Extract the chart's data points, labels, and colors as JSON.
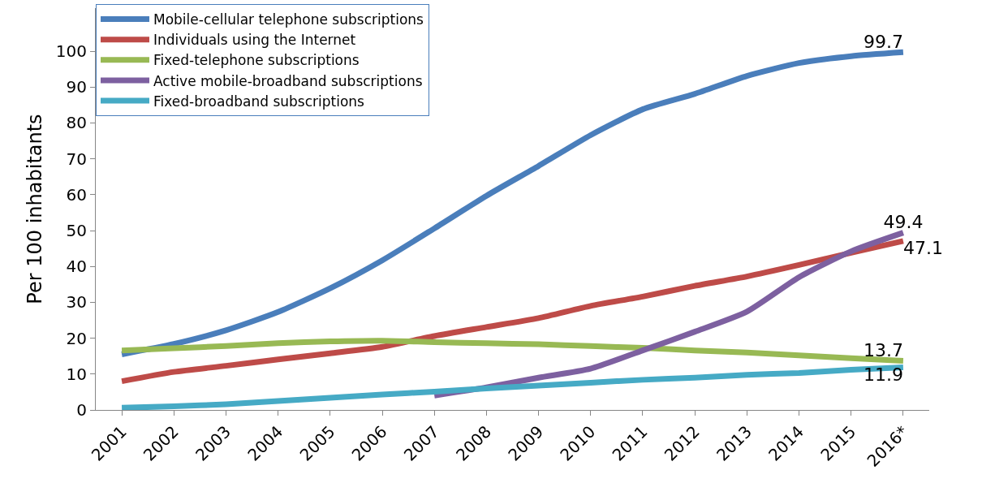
{
  "chart_data": {
    "type": "line",
    "ylabel": "Per 100 inhabitants",
    "categories": [
      "2001",
      "2002",
      "2003",
      "2004",
      "2005",
      "2006",
      "2007",
      "2008",
      "2009",
      "2010",
      "2011",
      "2012",
      "2013",
      "2014",
      "2015",
      "2016*"
    ],
    "series": [
      {
        "name": "Mobile-cellular telephone subscriptions",
        "color": "#4a7ebb",
        "values": [
          15.5,
          18.4,
          22.2,
          27.3,
          33.9,
          41.7,
          50.6,
          59.7,
          68.0,
          76.6,
          83.8,
          88.1,
          93.1,
          96.7,
          98.6,
          99.7
        ],
        "value_labels": [
          null,
          null,
          null,
          null,
          null,
          null,
          null,
          null,
          null,
          null,
          null,
          null,
          null,
          null,
          null,
          "99.7"
        ]
      },
      {
        "name": "Individuals using the Internet",
        "color": "#be4b48",
        "values": [
          8.0,
          10.6,
          12.3,
          14.1,
          15.8,
          17.6,
          20.6,
          23.1,
          25.6,
          29.0,
          31.6,
          34.6,
          37.2,
          40.4,
          43.8,
          47.1
        ],
        "value_labels": [
          null,
          null,
          null,
          null,
          null,
          null,
          null,
          null,
          null,
          null,
          null,
          null,
          null,
          null,
          null,
          "47.1"
        ]
      },
      {
        "name": "Fixed-telephone subscriptions",
        "color": "#98b954",
        "values": [
          16.6,
          17.2,
          17.8,
          18.6,
          19.1,
          19.3,
          18.9,
          18.6,
          18.3,
          17.8,
          17.3,
          16.6,
          16.0,
          15.2,
          14.4,
          13.7
        ],
        "value_labels": [
          null,
          null,
          null,
          null,
          null,
          null,
          null,
          null,
          null,
          null,
          null,
          null,
          null,
          null,
          null,
          "13.7"
        ]
      },
      {
        "name": "Active mobile-broadband subscriptions",
        "color": "#7d60a0",
        "values": [
          null,
          null,
          null,
          null,
          null,
          null,
          4.0,
          6.3,
          9.0,
          11.5,
          16.6,
          21.8,
          27.4,
          37.0,
          44.2,
          49.4
        ],
        "value_labels": [
          null,
          null,
          null,
          null,
          null,
          null,
          null,
          null,
          null,
          null,
          null,
          null,
          null,
          null,
          null,
          "49.4"
        ]
      },
      {
        "name": "Fixed-broadband subscriptions",
        "color": "#46aac5",
        "values": [
          0.6,
          1.0,
          1.6,
          2.5,
          3.4,
          4.3,
          5.1,
          6.0,
          6.8,
          7.6,
          8.4,
          9.0,
          9.8,
          10.3,
          11.2,
          11.9
        ],
        "value_labels": [
          null,
          null,
          null,
          null,
          null,
          null,
          null,
          null,
          null,
          null,
          null,
          null,
          null,
          null,
          null,
          "11.9"
        ]
      }
    ],
    "ylim": [
      0,
      112
    ],
    "yticks": [
      0,
      10,
      20,
      30,
      40,
      50,
      60,
      70,
      80,
      90,
      100
    ],
    "grid": false,
    "legend": "top left",
    "marker": "none",
    "line_style": "solid"
  }
}
